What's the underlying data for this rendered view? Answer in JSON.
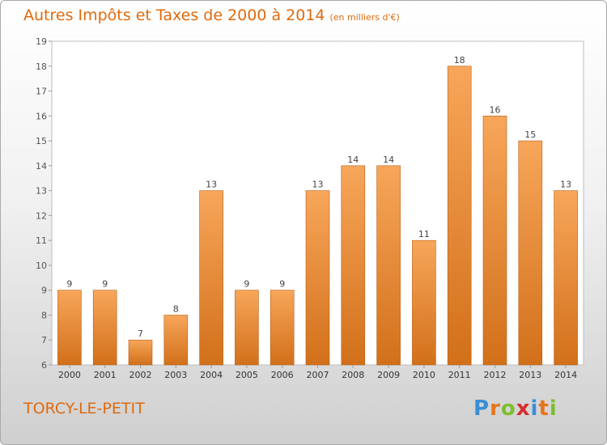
{
  "chart_data": {
    "type": "bar",
    "title": "Autres Impôts et Taxes de 2000 à 2014",
    "subtitle": "(en milliers d'€)",
    "categories": [
      "2000",
      "2001",
      "2002",
      "2003",
      "2004",
      "2005",
      "2006",
      "2007",
      "2008",
      "2009",
      "2010",
      "2011",
      "2012",
      "2013",
      "2014"
    ],
    "values": [
      9,
      9,
      7,
      8,
      13,
      9,
      9,
      13,
      14,
      14,
      11,
      18,
      16,
      15,
      13
    ],
    "ylim": [
      6,
      19
    ],
    "yticks": [
      6,
      7,
      8,
      9,
      10,
      11,
      12,
      13,
      14,
      15,
      16,
      17,
      18,
      19
    ],
    "xlabel": "",
    "ylabel": "",
    "grid": false,
    "colors": {
      "bar_light": "#f7a65a",
      "bar_dark": "#d2701a",
      "text": "#e06a0d"
    }
  },
  "commune": "TORCY-LE-PETIT",
  "logo": {
    "letters": [
      "P",
      "r",
      "o",
      "x",
      "i",
      "t",
      "i"
    ],
    "colors": [
      "#3a8fd6",
      "#e8731a",
      "#7cbf2c",
      "#d62d2d",
      "#3a8fd6",
      "#e8731a",
      "#7cbf2c"
    ]
  }
}
